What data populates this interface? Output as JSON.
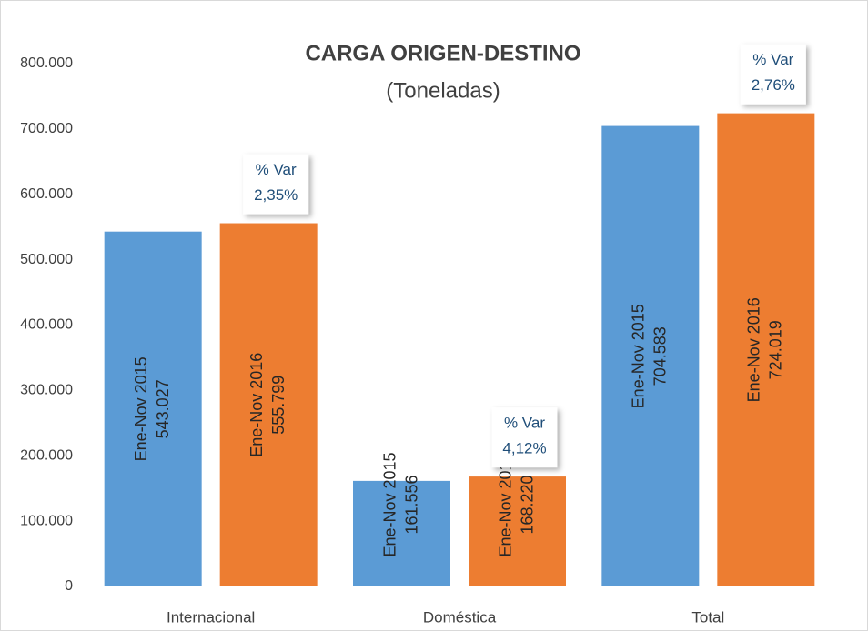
{
  "chart_data": {
    "type": "bar",
    "title": "CARGA ORIGEN-DESTINO",
    "subtitle": "(Toneladas)",
    "categories": [
      "Internacional",
      "Doméstica",
      "Total"
    ],
    "series": [
      {
        "name": "Ene-Nov 2015",
        "color": "#5b9bd5",
        "values": [
          543027,
          161556,
          704583
        ],
        "value_labels": [
          "543.027",
          "161.556",
          "704.583"
        ]
      },
      {
        "name": "Ene-Nov 2016",
        "color": "#ed7d31",
        "values": [
          555799,
          168220,
          724019
        ],
        "value_labels": [
          "555.799",
          "168.220",
          "724.019"
        ]
      }
    ],
    "annotations": [
      {
        "label": "% Var",
        "text": "2,35%"
      },
      {
        "label": "% Var",
        "text": "4,12%"
      },
      {
        "label": "% Var",
        "text": "2,76%"
      }
    ],
    "ylim": [
      0,
      800000
    ],
    "yticks": [
      0,
      {
        "value": 100000,
        "label": "100.000"
      },
      {
        "value": 200000,
        "label": "200.000"
      },
      {
        "value": 300000,
        "label": "300.000"
      },
      {
        "value": 400000,
        "label": "400.000"
      },
      {
        "value": 500000,
        "label": "500.000"
      },
      {
        "value": 600000,
        "label": "600.000"
      },
      {
        "value": 700000,
        "label": "700.000"
      },
      {
        "value": 800000,
        "label": "800.000"
      }
    ],
    "grid": false
  }
}
